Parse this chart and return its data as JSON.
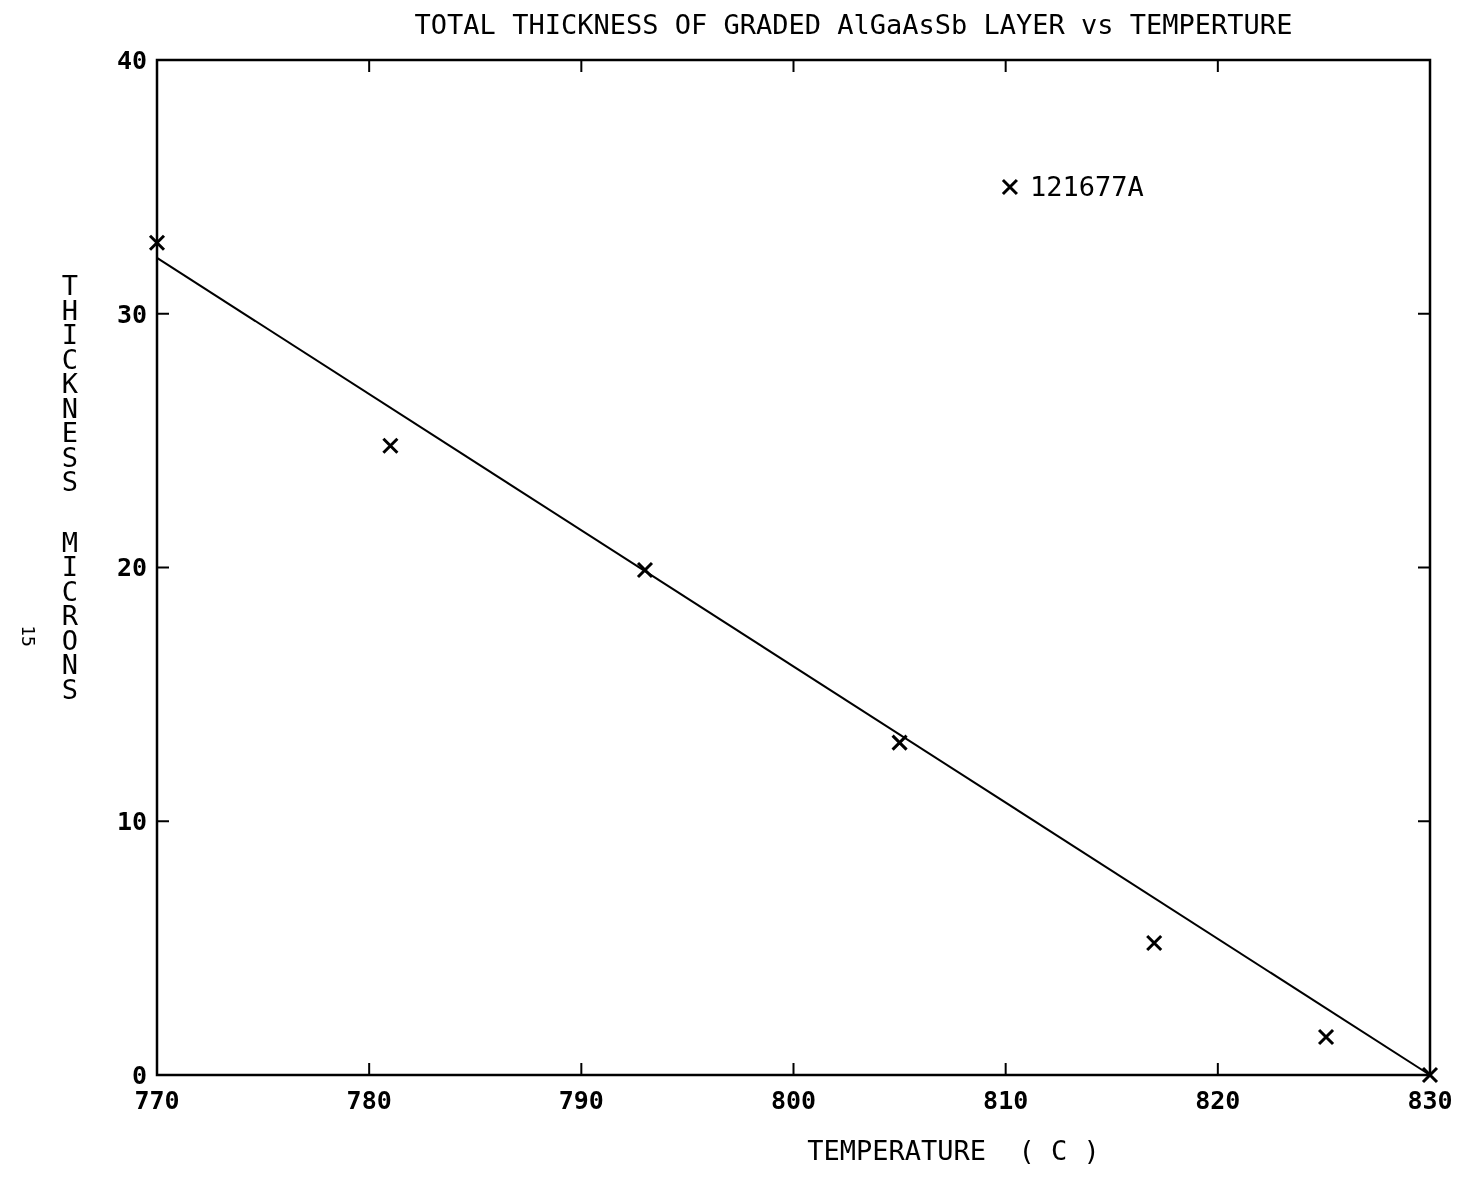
{
  "chart_data": {
    "type": "scatter",
    "title": "TOTAL THICKNESS OF GRADED AlGaAsSb LAYER vs TEMPERTURE",
    "xlabel": "TEMPERATURE  ( C )",
    "ylabel": "THICKNESS  MICRONS",
    "annotations": [
      "15"
    ],
    "series": [
      {
        "name": "121677A",
        "color": "#000000",
        "marker": "cross",
        "x": [
          770,
          781,
          793,
          805,
          817,
          825.1,
          830
        ],
        "values": [
          32.8,
          24.8,
          19.9,
          13.1,
          5.2,
          1.5,
          0
        ]
      },
      {
        "type": "line",
        "color": "#000000",
        "marker": "none",
        "x": [
          770,
          830
        ],
        "values": [
          32.2,
          0
        ]
      }
    ],
    "xlim": [
      770,
      830
    ],
    "ylim": [
      0,
      40
    ],
    "xticks": [
      770,
      780,
      790,
      800,
      810,
      820,
      830
    ],
    "yticks": [
      0,
      10,
      20,
      30,
      40
    ],
    "grid": false,
    "legend": "top right"
  }
}
